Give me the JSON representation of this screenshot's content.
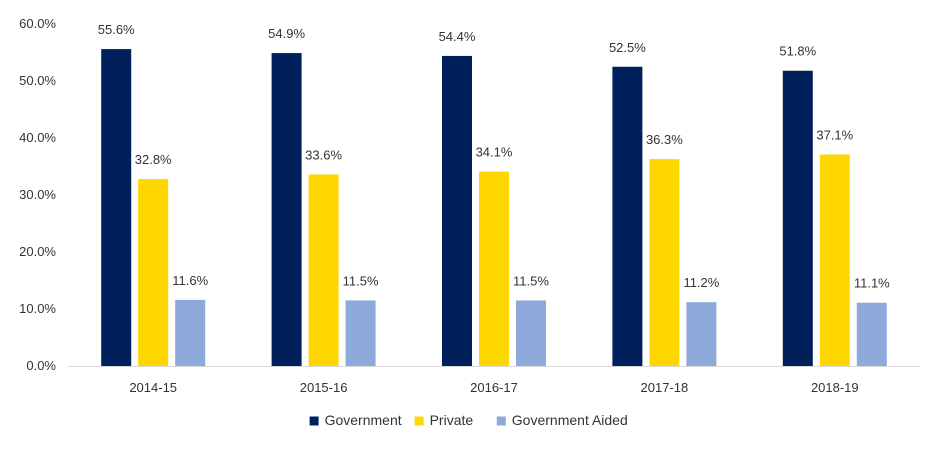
{
  "chart_data": {
    "type": "bar",
    "title": "",
    "xlabel": "",
    "ylabel": "",
    "categories": [
      "2014-15",
      "2015-16",
      "2016-17",
      "2017-18",
      "2018-19"
    ],
    "series": [
      {
        "name": "Government",
        "color": "#00205b",
        "values": [
          55.6,
          54.9,
          54.4,
          52.5,
          51.8
        ],
        "labels": [
          "55.6%",
          "54.9%",
          "54.4%",
          "52.5%",
          "51.8%"
        ]
      },
      {
        "name": "Private",
        "color": "#ffd700",
        "values": [
          32.8,
          33.6,
          34.1,
          36.3,
          37.1
        ],
        "labels": [
          "32.8%",
          "33.6%",
          "34.1%",
          "36.3%",
          "37.1%"
        ]
      },
      {
        "name": "Government Aided",
        "color": "#8eaadb",
        "values": [
          11.6,
          11.5,
          11.5,
          11.2,
          11.1
        ],
        "labels": [
          "11.6%",
          "11.5%",
          "11.5%",
          "11.2%",
          "11.1%"
        ]
      }
    ],
    "ylim": [
      0,
      60
    ],
    "yticks": [
      0,
      10,
      20,
      30,
      40,
      50,
      60
    ],
    "ytick_labels": [
      "0.0%",
      "10.0%",
      "20.0%",
      "30.0%",
      "40.0%",
      "50.0%",
      "60.0%"
    ],
    "grid": false,
    "legend_position": "bottom-center",
    "axis_color": "#d9d9d9"
  }
}
